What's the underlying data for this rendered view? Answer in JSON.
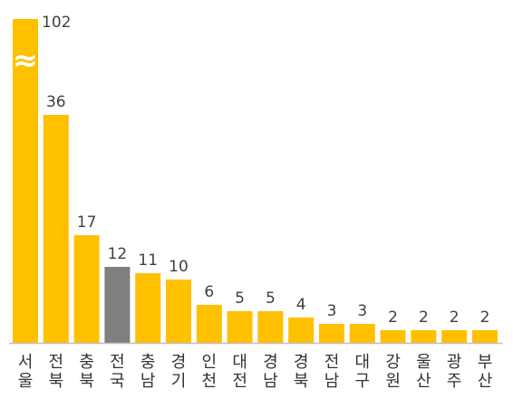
{
  "chart_data": {
    "type": "bar",
    "categories": [
      "서울",
      "전북",
      "충북",
      "전국",
      "충남",
      "경기",
      "인천",
      "대전",
      "경남",
      "경북",
      "전남",
      "대구",
      "강원",
      "울산",
      "광주",
      "부산"
    ],
    "values": [
      102,
      36,
      17,
      12,
      11,
      10,
      6,
      5,
      5,
      4,
      3,
      3,
      2,
      2,
      2,
      2
    ],
    "highlight_index": 3,
    "axis_break": {
      "category": "서울",
      "symbol": "≈"
    },
    "title": "",
    "xlabel": "",
    "ylabel": "",
    "grid": false,
    "legend": "none",
    "colors": {
      "bar": "#FFC000",
      "highlight": "#7F7F7F",
      "axis": "#BFBFBF",
      "break": "#FFFFFF"
    }
  }
}
